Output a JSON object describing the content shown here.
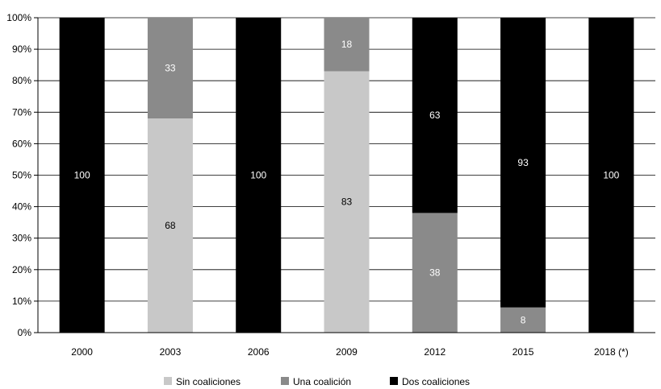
{
  "chart_data": {
    "type": "bar",
    "stacked": true,
    "categories": [
      "2000",
      "2003",
      "2006",
      "2009",
      "2012",
      "2015",
      "2018 (*)"
    ],
    "ylim": [
      0,
      100
    ],
    "y_ticks": [
      "0%",
      "10%",
      "20%",
      "30%",
      "40%",
      "50%",
      "60%",
      "70%",
      "80%",
      "90%",
      "100%"
    ],
    "grid": true,
    "legend_position": "bottom",
    "series": [
      {
        "name": "Sin coaliciones",
        "color": "#c8c8c8",
        "label_color": "#000000",
        "values": [
          0,
          68,
          0,
          83,
          0,
          0,
          0
        ]
      },
      {
        "name": "Una coalición",
        "color": "#8a8a8a",
        "label_color": "#ffffff",
        "values": [
          0,
          33,
          0,
          18,
          38,
          8,
          0
        ]
      },
      {
        "name": "Dos coaliciones",
        "color": "#000000",
        "label_color": "#ffffff",
        "values": [
          100,
          0,
          100,
          0,
          63,
          93,
          100
        ]
      }
    ]
  }
}
